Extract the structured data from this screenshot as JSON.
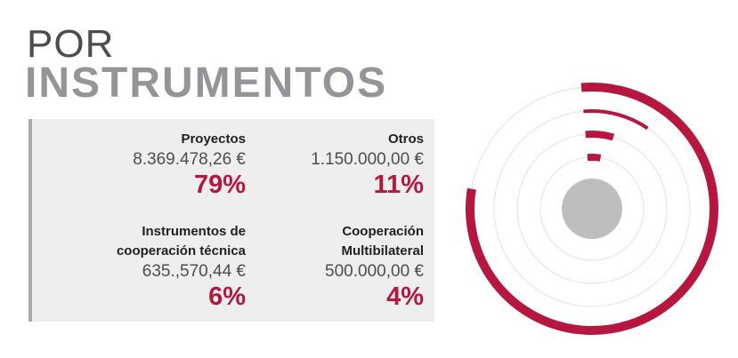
{
  "header": {
    "line1": "POR",
    "line2": "INSTRUMENTOS"
  },
  "items": [
    {
      "name_lines": [
        "Proyectos"
      ],
      "amount": "8.369.478,26 €",
      "percent": "79%"
    },
    {
      "name_lines": [
        "Otros"
      ],
      "amount": "1.150.000,00 €",
      "percent": "11%"
    },
    {
      "name_lines": [
        "Instrumentos de",
        "cooperación técnica"
      ],
      "amount": "635.,570,44 €",
      "percent": "6%"
    },
    {
      "name_lines": [
        "Cooperación",
        "Multibilateral"
      ],
      "amount": "500.000,00 €",
      "percent": "4%"
    }
  ],
  "colors": {
    "accent": "#b5173f",
    "ring_track": "#e6e7e8",
    "center": "#bcbec0"
  },
  "chart_data": {
    "type": "pie",
    "variant": "radial-rings",
    "categories": [
      "Proyectos",
      "Otros",
      "Instrumentos de cooperación técnica",
      "Cooperación Multibilateral"
    ],
    "values": [
      79,
      11,
      6,
      4
    ],
    "amounts": [
      8369478.26,
      1150000.0,
      635570.44,
      500000.0
    ]
  }
}
